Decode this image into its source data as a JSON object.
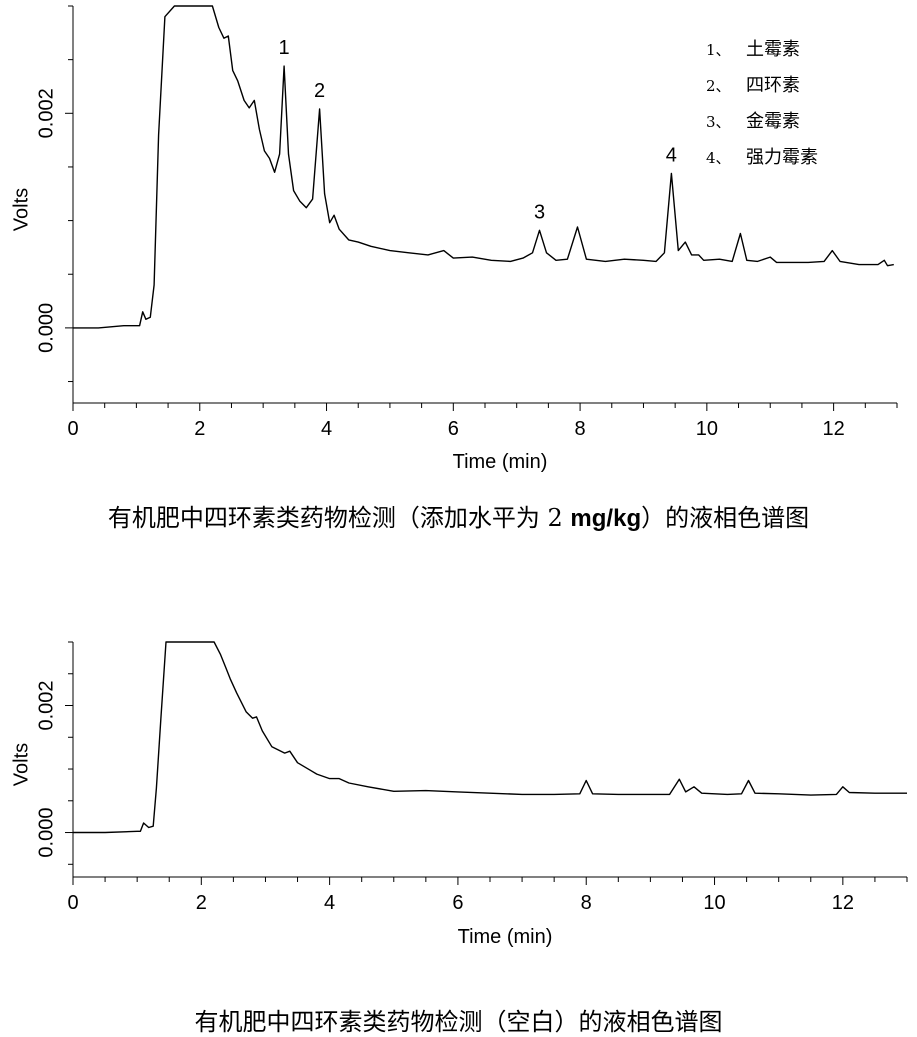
{
  "chart_data": [
    {
      "type": "line",
      "xlabel": "Time (min)",
      "ylabel": "Volts",
      "xlim": [
        0,
        13
      ],
      "ylim": [
        -0.0007,
        0.003
      ],
      "xticks": [
        "0",
        "2",
        "4",
        "6",
        "8",
        "10",
        "12"
      ],
      "yticks": [
        "0.000",
        "0.002"
      ],
      "grid": false,
      "legend_position": "top-right",
      "legend": [
        {
          "num": "1、",
          "name": "土霉素"
        },
        {
          "num": "2、",
          "name": "四环素"
        },
        {
          "num": "3、",
          "name": "金霉素"
        },
        {
          "num": "4、",
          "name": "强力霉素"
        }
      ],
      "peak_labels": [
        {
          "label": "1",
          "x": 3.33,
          "y": 0.00244
        },
        {
          "label": "2",
          "x": 3.89,
          "y": 0.00204
        },
        {
          "label": "3",
          "x": 7.36,
          "y": 0.00091
        },
        {
          "label": "4",
          "x": 9.44,
          "y": 0.00144
        }
      ],
      "series": [
        {
          "points": [
            [
              0,
              0.0
            ],
            [
              0.4,
              0.0
            ],
            [
              0.8,
              2e-05
            ],
            [
              1.05,
              2e-05
            ],
            [
              1.1,
              0.00015
            ],
            [
              1.15,
              8e-05
            ],
            [
              1.22,
              0.0001
            ],
            [
              1.28,
              0.0004
            ],
            [
              1.35,
              0.0018
            ],
            [
              1.45,
              0.0029
            ],
            [
              1.6,
              0.003
            ],
            [
              2.0,
              0.003
            ],
            [
              2.2,
              0.003
            ],
            [
              2.3,
              0.0028
            ],
            [
              2.38,
              0.0027
            ],
            [
              2.45,
              0.00272
            ],
            [
              2.52,
              0.0024
            ],
            [
              2.6,
              0.0023
            ],
            [
              2.7,
              0.00212
            ],
            [
              2.78,
              0.00205
            ],
            [
              2.86,
              0.00212
            ],
            [
              2.94,
              0.00185
            ],
            [
              3.02,
              0.00165
            ],
            [
              3.1,
              0.00158
            ],
            [
              3.18,
              0.00145
            ],
            [
              3.26,
              0.00162
            ],
            [
              3.33,
              0.00244
            ],
            [
              3.4,
              0.00162
            ],
            [
              3.48,
              0.00128
            ],
            [
              3.58,
              0.00118
            ],
            [
              3.68,
              0.00112
            ],
            [
              3.78,
              0.0012
            ],
            [
              3.89,
              0.00204
            ],
            [
              3.97,
              0.00125
            ],
            [
              4.05,
              0.00098
            ],
            [
              4.12,
              0.00105
            ],
            [
              4.2,
              0.00092
            ],
            [
              4.35,
              0.00082
            ],
            [
              4.5,
              0.0008
            ],
            [
              4.7,
              0.00076
            ],
            [
              5.0,
              0.00072
            ],
            [
              5.3,
              0.0007
            ],
            [
              5.6,
              0.00068
            ],
            [
              5.85,
              0.00072
            ],
            [
              6.0,
              0.00065
            ],
            [
              6.3,
              0.00066
            ],
            [
              6.6,
              0.00063
            ],
            [
              6.9,
              0.00062
            ],
            [
              7.1,
              0.00065
            ],
            [
              7.25,
              0.0007
            ],
            [
              7.36,
              0.00091
            ],
            [
              7.47,
              0.0007
            ],
            [
              7.62,
              0.00063
            ],
            [
              7.8,
              0.00064
            ],
            [
              7.96,
              0.00094
            ],
            [
              8.1,
              0.00064
            ],
            [
              8.4,
              0.00062
            ],
            [
              8.7,
              0.00064
            ],
            [
              9.0,
              0.00063
            ],
            [
              9.2,
              0.00062
            ],
            [
              9.33,
              0.0007
            ],
            [
              9.44,
              0.00144
            ],
            [
              9.55,
              0.00072
            ],
            [
              9.66,
              0.0008
            ],
            [
              9.76,
              0.00068
            ],
            [
              9.87,
              0.00068
            ],
            [
              9.95,
              0.00063
            ],
            [
              10.2,
              0.00064
            ],
            [
              10.4,
              0.00062
            ],
            [
              10.53,
              0.00088
            ],
            [
              10.63,
              0.00063
            ],
            [
              10.8,
              0.00062
            ],
            [
              11.0,
              0.00066
            ],
            [
              11.1,
              0.00061
            ],
            [
              11.3,
              0.00061
            ],
            [
              11.6,
              0.00061
            ],
            [
              11.85,
              0.00062
            ],
            [
              11.98,
              0.00072
            ],
            [
              12.1,
              0.00062
            ],
            [
              12.4,
              0.00059
            ],
            [
              12.7,
              0.00059
            ],
            [
              12.8,
              0.00063
            ],
            [
              12.85,
              0.00058
            ],
            [
              12.95,
              0.00059
            ]
          ]
        }
      ]
    },
    {
      "type": "line",
      "xlabel": "Time (min)",
      "ylabel": "Volts",
      "xlim": [
        0,
        13
      ],
      "ylim": [
        -0.0007,
        0.003
      ],
      "xticks": [
        "0",
        "2",
        "4",
        "6",
        "8",
        "10",
        "12"
      ],
      "yticks": [
        "0.000",
        "0.002"
      ],
      "grid": false,
      "series": [
        {
          "points": [
            [
              0,
              0.0
            ],
            [
              0.5,
              0.0
            ],
            [
              1.0,
              2e-05
            ],
            [
              1.05,
              2e-05
            ],
            [
              1.1,
              0.00015
            ],
            [
              1.18,
              8e-05
            ],
            [
              1.25,
              0.0001
            ],
            [
              1.3,
              0.0007
            ],
            [
              1.37,
              0.0018
            ],
            [
              1.45,
              0.003
            ],
            [
              2.2,
              0.003
            ],
            [
              2.3,
              0.0028
            ],
            [
              2.38,
              0.0026
            ],
            [
              2.45,
              0.00242
            ],
            [
              2.55,
              0.0022
            ],
            [
              2.7,
              0.0019
            ],
            [
              2.8,
              0.0018
            ],
            [
              2.86,
              0.00182
            ],
            [
              2.95,
              0.0016
            ],
            [
              3.1,
              0.00135
            ],
            [
              3.3,
              0.00125
            ],
            [
              3.38,
              0.00128
            ],
            [
              3.5,
              0.0011
            ],
            [
              3.7,
              0.00098
            ],
            [
              3.8,
              0.00092
            ],
            [
              4.0,
              0.00085
            ],
            [
              4.15,
              0.00085
            ],
            [
              4.3,
              0.00078
            ],
            [
              4.6,
              0.00072
            ],
            [
              5.0,
              0.00065
            ],
            [
              5.5,
              0.00066
            ],
            [
              6.0,
              0.00064
            ],
            [
              6.5,
              0.00062
            ],
            [
              7.0,
              0.0006
            ],
            [
              7.5,
              0.0006
            ],
            [
              7.9,
              0.00061
            ],
            [
              8.0,
              0.00082
            ],
            [
              8.1,
              0.00061
            ],
            [
              8.5,
              0.0006
            ],
            [
              9.0,
              0.0006
            ],
            [
              9.3,
              0.0006
            ],
            [
              9.45,
              0.00084
            ],
            [
              9.55,
              0.00064
            ],
            [
              9.68,
              0.00072
            ],
            [
              9.8,
              0.00062
            ],
            [
              10.2,
              0.0006
            ],
            [
              10.42,
              0.00061
            ],
            [
              10.53,
              0.00082
            ],
            [
              10.63,
              0.00062
            ],
            [
              11.0,
              0.00061
            ],
            [
              11.5,
              0.00059
            ],
            [
              11.9,
              0.0006
            ],
            [
              12.0,
              0.00072
            ],
            [
              12.1,
              0.00063
            ],
            [
              12.5,
              0.00062
            ],
            [
              13.0,
              0.00062
            ]
          ]
        }
      ]
    }
  ],
  "captions": {
    "chart1_pre": "有机肥中四环素类药物检测（添加水平为 2 ",
    "chart1_unit": "mg/kg",
    "chart1_post": "）的液相色谱图",
    "chart2": "有机肥中四环素类药物检测（空白）的液相色谱图"
  }
}
